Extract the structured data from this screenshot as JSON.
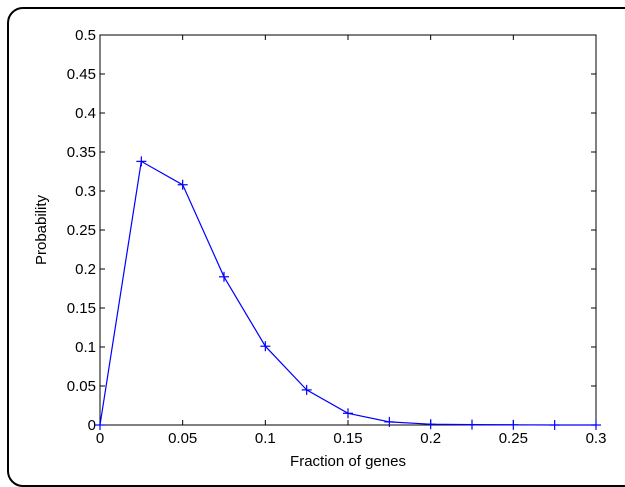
{
  "chart_data": {
    "type": "line",
    "title": "",
    "xlabel": "Fraction of genes",
    "ylabel": "Probability",
    "xlim": [
      0,
      0.3
    ],
    "ylim": [
      0,
      0.5
    ],
    "x_ticks": [
      "0",
      "0.05",
      "0.1",
      "0.15",
      "0.2",
      "0.25",
      "0.3"
    ],
    "y_ticks": [
      "0",
      "0.05",
      "0.1",
      "0.15",
      "0.2",
      "0.25",
      "0.3",
      "0.35",
      "0.4",
      "0.45",
      "0.5"
    ],
    "grid": false,
    "series": [
      {
        "color": "#0000ff",
        "marker": "plus",
        "x": [
          0,
          0.025,
          0.05,
          0.075,
          0.1,
          0.125,
          0.15,
          0.175,
          0.2,
          0.225,
          0.25,
          0.275,
          0.3
        ],
        "y": [
          0,
          0.338,
          0.308,
          0.19,
          0.101,
          0.045,
          0.015,
          0.004,
          0.001,
          0.0005,
          0.0002,
          0,
          0
        ]
      }
    ]
  }
}
